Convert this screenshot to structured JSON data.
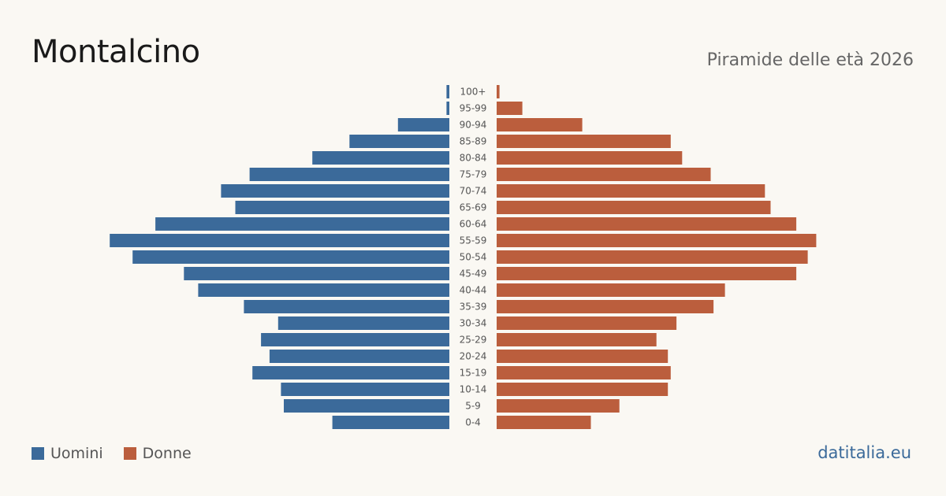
{
  "header": {
    "title": "Montalcino",
    "subtitle": "Piramide delle età 2026"
  },
  "legend": {
    "men_label": "Uomini",
    "women_label": "Donne"
  },
  "brand": "datitalia.eu",
  "colors": {
    "men": "#3b6a9a",
    "women": "#bb5e3d",
    "background": "#faf8f3"
  },
  "chart_data": {
    "type": "bar",
    "orientation": "horizontal-pyramid",
    "categories": [
      "100+",
      "95-99",
      "90-94",
      "85-89",
      "80-84",
      "75-79",
      "70-74",
      "65-69",
      "60-64",
      "55-59",
      "50-54",
      "45-49",
      "40-44",
      "35-39",
      "30-34",
      "25-29",
      "20-24",
      "15-19",
      "10-14",
      "5-9",
      "0-4"
    ],
    "series": [
      {
        "name": "Uomini",
        "values": [
          1,
          1,
          18,
          35,
          48,
          70,
          80,
          75,
          103,
          119,
          111,
          93,
          88,
          72,
          60,
          66,
          63,
          69,
          59,
          58,
          41
        ]
      },
      {
        "name": "Donne",
        "values": [
          1,
          9,
          30,
          61,
          65,
          75,
          94,
          96,
          105,
          112,
          109,
          105,
          80,
          76,
          63,
          56,
          60,
          61,
          60,
          43,
          33
        ]
      }
    ],
    "title": "Piramide delle età 2026",
    "xlabel": "",
    "ylabel": "",
    "grid": false,
    "legend_position": "bottom-left"
  }
}
